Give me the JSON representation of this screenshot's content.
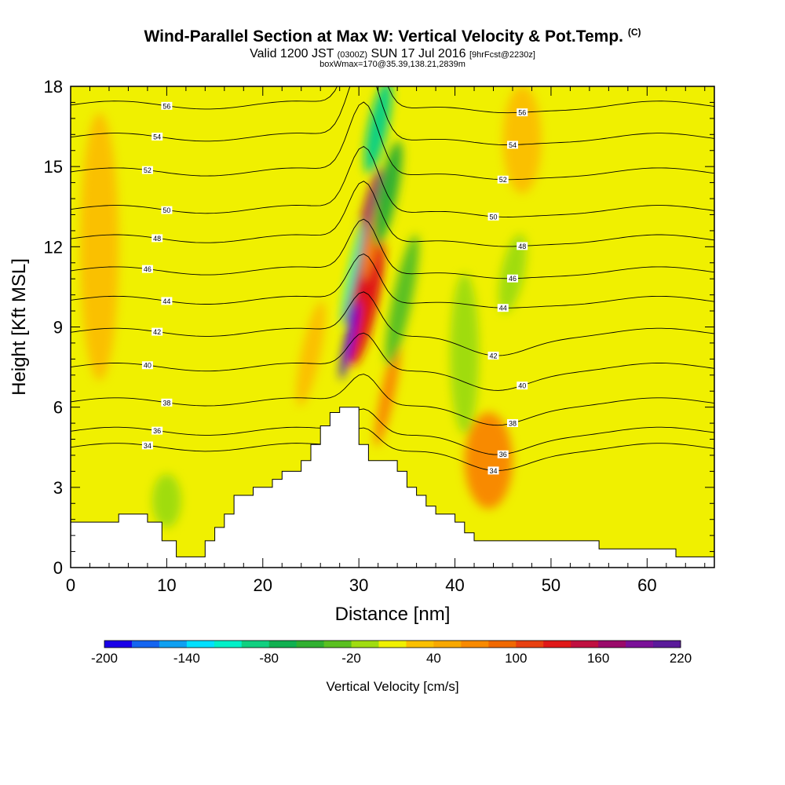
{
  "title": {
    "main": "Wind-Parallel Section at Max W: Vertical Velocity & Pot.Temp.",
    "copyright": "(C)",
    "valid_prefix": "Valid 1200 JST",
    "valid_utc": "(0300Z)",
    "valid_date": "SUN 17 Jul 2016",
    "forecast": "[9hrFcst@2230z]",
    "box_info": "boxWmax=170@35.39,138.21,2839m"
  },
  "chart_data": {
    "type": "heatmap",
    "xlabel": "Distance [nm]",
    "ylabel": "Height [Kft MSL]",
    "xlim": [
      0,
      67
    ],
    "ylim": [
      0,
      18
    ],
    "xticks": [
      "0",
      "10",
      "20",
      "30",
      "40",
      "50",
      "60"
    ],
    "yticks": [
      "0",
      "3",
      "6",
      "9",
      "12",
      "15",
      "18"
    ],
    "colorbar": {
      "title": "Vertical Velocity [cm/s]",
      "min": -200,
      "max": 220,
      "step": 20,
      "labels": [
        "-200",
        "-140",
        "-80",
        "-20",
        "40",
        "100",
        "160",
        "220"
      ],
      "colors": [
        "#1a00e8",
        "#1565f0",
        "#0fa0f2",
        "#00e0ff",
        "#00f0c8",
        "#10d080",
        "#10b050",
        "#30b030",
        "#5ac020",
        "#a0dc10",
        "#f0f000",
        "#fac000",
        "#f8a800",
        "#f88a00",
        "#f06800",
        "#e84010",
        "#e01818",
        "#c01040",
        "#9a0a6a",
        "#7a1098",
        "#5a1a9a"
      ]
    },
    "terrain_profile": [
      [
        0,
        1.7
      ],
      [
        5,
        1.7
      ],
      [
        5,
        2.0
      ],
      [
        8,
        2.0
      ],
      [
        8,
        1.7
      ],
      [
        9.5,
        1.7
      ],
      [
        9.5,
        1.0
      ],
      [
        11,
        1.0
      ],
      [
        11,
        0.4
      ],
      [
        14,
        0.4
      ],
      [
        14,
        1.0
      ],
      [
        15,
        1.0
      ],
      [
        15,
        1.5
      ],
      [
        16,
        1.5
      ],
      [
        16,
        2.0
      ],
      [
        17,
        2.0
      ],
      [
        17,
        2.7
      ],
      [
        19,
        2.7
      ],
      [
        19,
        3.0
      ],
      [
        20,
        3.0
      ],
      [
        20,
        3.0
      ],
      [
        21,
        3.0
      ],
      [
        21,
        3.3
      ],
      [
        22,
        3.3
      ],
      [
        22,
        3.6
      ],
      [
        24,
        3.6
      ],
      [
        24,
        4.0
      ],
      [
        25,
        4.0
      ],
      [
        25,
        4.6
      ],
      [
        26,
        4.6
      ],
      [
        26,
        5.3
      ],
      [
        27,
        5.3
      ],
      [
        27,
        5.8
      ],
      [
        28,
        5.8
      ],
      [
        28,
        6.0
      ],
      [
        30,
        6.0
      ],
      [
        30,
        4.6
      ],
      [
        31,
        4.6
      ],
      [
        31,
        4.0
      ],
      [
        34,
        4.0
      ],
      [
        34,
        3.6
      ],
      [
        35,
        3.6
      ],
      [
        35,
        3.0
      ],
      [
        36,
        3.0
      ],
      [
        36,
        2.7
      ],
      [
        37,
        2.7
      ],
      [
        37,
        2.3
      ],
      [
        38,
        2.3
      ],
      [
        38,
        2.0
      ],
      [
        40,
        2.0
      ],
      [
        40,
        1.7
      ],
      [
        41,
        1.7
      ],
      [
        41,
        1.3
      ],
      [
        42,
        1.3
      ],
      [
        42,
        1.0
      ],
      [
        55,
        1.0
      ],
      [
        55,
        0.7
      ],
      [
        63,
        0.7
      ],
      [
        63,
        0.4
      ],
      [
        67,
        0.4
      ],
      [
        67,
        0.0
      ],
      [
        0,
        0.0
      ]
    ],
    "w_regions": [
      {
        "x": 30.5,
        "y": 12.0,
        "rx": 0.9,
        "ry": 3.0,
        "w": 170
      },
      {
        "x": 30.8,
        "y": 10.0,
        "rx": 1.2,
        "ry": 2.5,
        "w": 120
      },
      {
        "x": 31.5,
        "y": 12.5,
        "rx": 0.6,
        "ry": 1.8,
        "w": 60
      },
      {
        "x": 33.0,
        "y": 6.5,
        "rx": 0.7,
        "ry": 2.0,
        "w": 60
      },
      {
        "x": 29.0,
        "y": 8.5,
        "rx": 0.4,
        "ry": 1.5,
        "w": -200
      },
      {
        "x": 29.3,
        "y": 11.0,
        "rx": 0.35,
        "ry": 2.0,
        "w": -120
      },
      {
        "x": 32.0,
        "y": 16.5,
        "rx": 1.0,
        "ry": 1.8,
        "w": -100
      },
      {
        "x": 33.0,
        "y": 14.0,
        "rx": 1.0,
        "ry": 2.0,
        "w": -60
      },
      {
        "x": 34.5,
        "y": 10.0,
        "rx": 1.0,
        "ry": 2.5,
        "w": -40
      },
      {
        "x": 43.5,
        "y": 4.0,
        "rx": 2.5,
        "ry": 1.8,
        "w": 60
      },
      {
        "x": 25.0,
        "y": 8.0,
        "rx": 1.0,
        "ry": 2.0,
        "w": 30
      },
      {
        "x": 41.0,
        "y": 8.0,
        "rx": 1.5,
        "ry": 3.0,
        "w": -20
      },
      {
        "x": 46.0,
        "y": 11.0,
        "rx": 1.2,
        "ry": 1.5,
        "w": -20
      },
      {
        "x": 10.0,
        "y": 2.5,
        "rx": 1.5,
        "ry": 1.0,
        "w": -20
      },
      {
        "x": 3.0,
        "y": 12.0,
        "rx": 2.0,
        "ry": 5.0,
        "w": 20
      },
      {
        "x": 47.0,
        "y": 16.0,
        "rx": 2.0,
        "ry": 2.0,
        "w": 20
      }
    ],
    "theta_contours": [
      {
        "label": "34",
        "base": 4.5
      },
      {
        "label": "36",
        "base": 5.1
      },
      {
        "label": "38",
        "base": 6.2
      },
      {
        "label": "40",
        "base": 7.5
      },
      {
        "label": "42",
        "base": 8.8
      },
      {
        "label": "44",
        "base": 10.0
      },
      {
        "label": "46",
        "base": 11.1
      },
      {
        "label": "48",
        "base": 12.3
      },
      {
        "label": "50",
        "base": 13.4
      },
      {
        "label": "52",
        "base": 14.8
      },
      {
        "label": "54",
        "base": 16.1
      },
      {
        "label": "56",
        "base": 17.3
      }
    ]
  }
}
